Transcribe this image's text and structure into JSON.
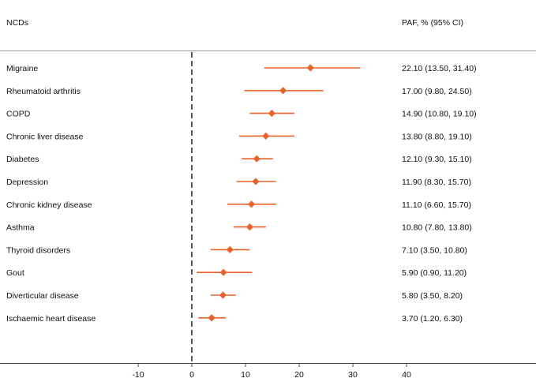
{
  "header": {
    "left_label": "NCDs",
    "right_label": "PAF, % (95% CI)"
  },
  "colors": {
    "marker": "#e8632a",
    "refline": "#333333",
    "rule": "#9a9a9a"
  },
  "chart_data": {
    "type": "forest",
    "xlim": [
      -15,
      40
    ],
    "xticks": [
      -10,
      0,
      10,
      20,
      30,
      40
    ],
    "reference_line": 0,
    "reference_style": "dashed",
    "rows": [
      {
        "label": "Migraine",
        "est": 22.1,
        "lo": 13.5,
        "hi": 31.4,
        "text": "22.10 (13.50, 31.40)"
      },
      {
        "label": "Rheumatoid arthritis",
        "est": 17.0,
        "lo": 9.8,
        "hi": 24.5,
        "text": "17.00 (9.80, 24.50)"
      },
      {
        "label": "COPD",
        "est": 14.9,
        "lo": 10.8,
        "hi": 19.1,
        "text": "14.90 (10.80, 19.10)"
      },
      {
        "label": "Chronic liver disease",
        "est": 13.8,
        "lo": 8.8,
        "hi": 19.1,
        "text": "13.80 (8.80, 19.10)"
      },
      {
        "label": "Diabetes",
        "est": 12.1,
        "lo": 9.3,
        "hi": 15.1,
        "text": "12.10 (9.30, 15.10)"
      },
      {
        "label": "Depression",
        "est": 11.9,
        "lo": 8.3,
        "hi": 15.7,
        "text": "11.90 (8.30, 15.70)"
      },
      {
        "label": "Chronic kidney disease",
        "est": 11.1,
        "lo": 6.6,
        "hi": 15.7,
        "text": "11.10 (6.60, 15.70)"
      },
      {
        "label": "Asthma",
        "est": 10.8,
        "lo": 7.8,
        "hi": 13.8,
        "text": "10.80 (7.80, 13.80)"
      },
      {
        "label": "Thyroid disorders",
        "est": 7.1,
        "lo": 3.5,
        "hi": 10.8,
        "text": "7.10 (3.50, 10.80)"
      },
      {
        "label": "Gout",
        "est": 5.9,
        "lo": 0.9,
        "hi": 11.2,
        "text": "5.90 (0.90, 11.20)"
      },
      {
        "label": "Diverticular disease",
        "est": 5.8,
        "lo": 3.5,
        "hi": 8.2,
        "text": "5.80 (3.50, 8.20)"
      },
      {
        "label": "Ischaemic heart disease",
        "est": 3.7,
        "lo": 1.2,
        "hi": 6.3,
        "text": "3.70 (1.20, 6.30)"
      }
    ]
  }
}
